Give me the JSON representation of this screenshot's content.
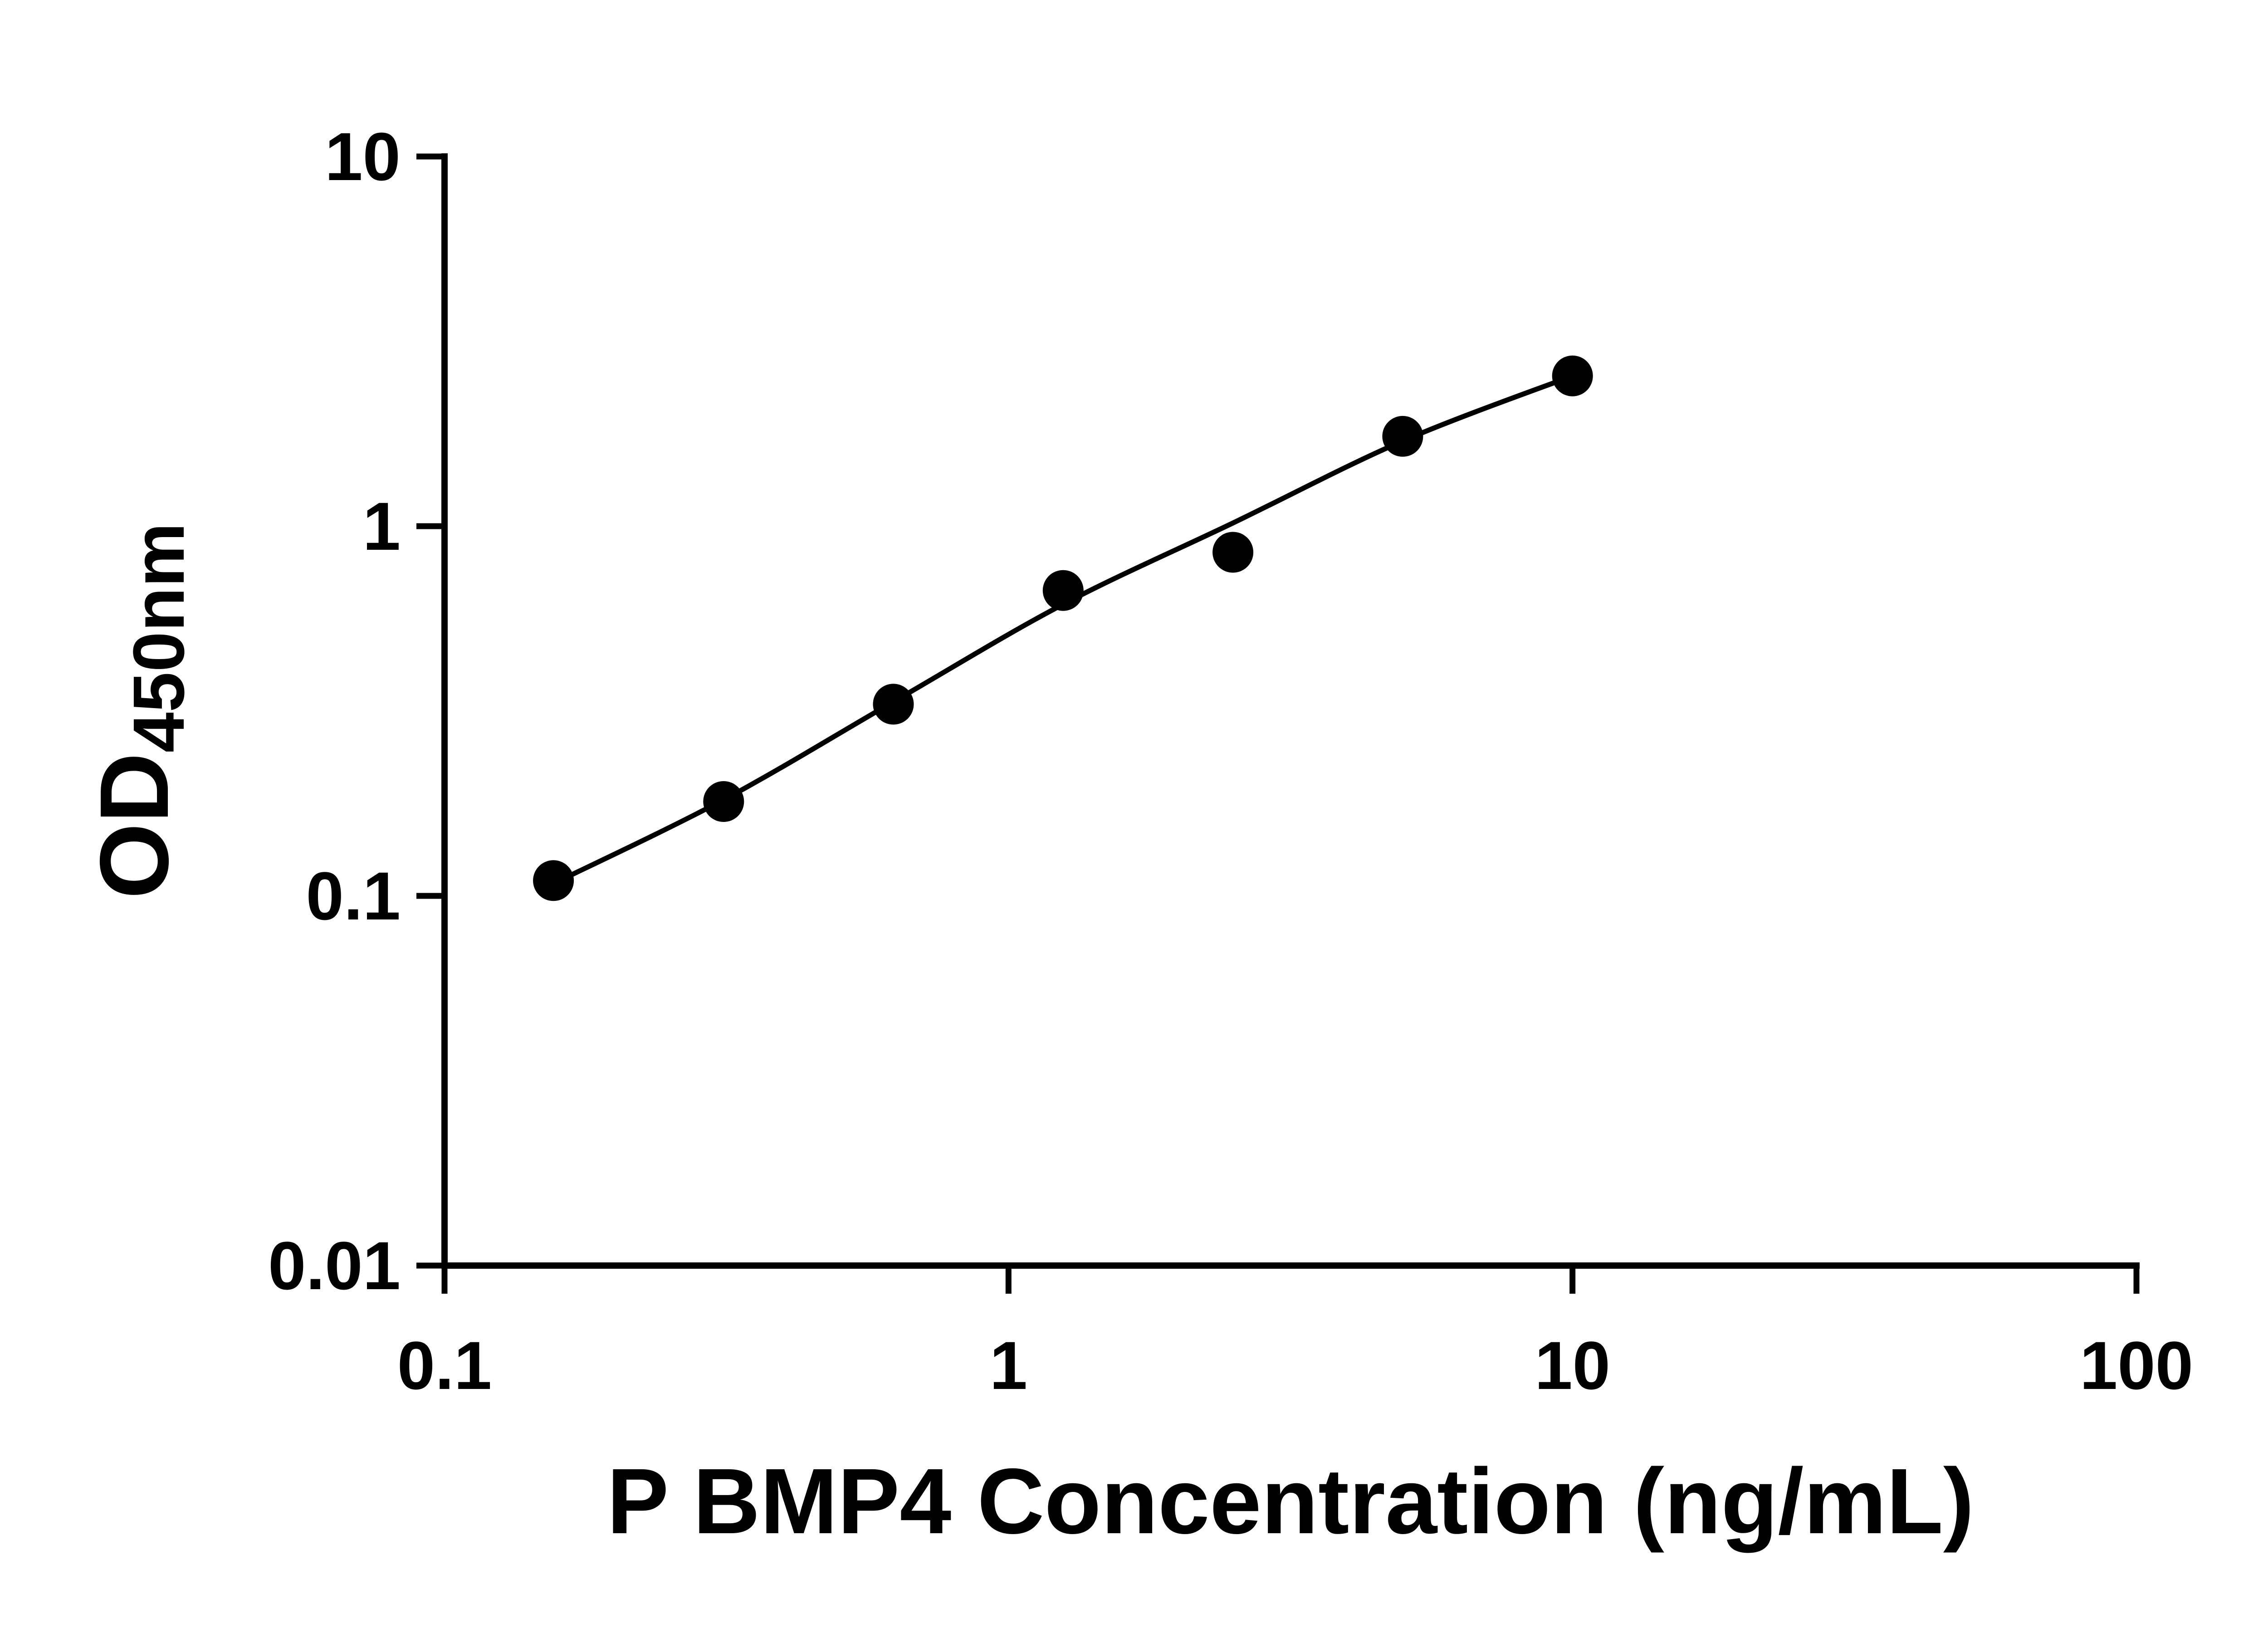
{
  "chart_data": {
    "type": "scatter",
    "title": "",
    "xlabel": "P BMP4 Concentration (ng/mL)",
    "ylabel": "OD",
    "ylabel_subscript": "450nm",
    "x_scale": "log",
    "y_scale": "log",
    "xlim": [
      0.1,
      100
    ],
    "ylim": [
      0.01,
      10
    ],
    "grid": false,
    "legend": "none",
    "x_ticks": [
      {
        "value": 0.1,
        "label": "0.1"
      },
      {
        "value": 1,
        "label": "1"
      },
      {
        "value": 10,
        "label": "10"
      },
      {
        "value": 100,
        "label": "100"
      }
    ],
    "y_ticks": [
      {
        "value": 10,
        "label": "10"
      },
      {
        "value": 1,
        "label": "1"
      },
      {
        "value": 0.1,
        "label": "0.1"
      },
      {
        "value": 0.01,
        "label": "0.01"
      }
    ],
    "points": [
      {
        "x": 0.156,
        "y": 0.11
      },
      {
        "x": 0.3125,
        "y": 0.18
      },
      {
        "x": 0.625,
        "y": 0.33
      },
      {
        "x": 1.25,
        "y": 0.67
      },
      {
        "x": 2.5,
        "y": 0.85
      },
      {
        "x": 5,
        "y": 1.75
      },
      {
        "x": 10,
        "y": 2.55
      }
    ],
    "fit_curve": [
      {
        "x": 0.156,
        "y": 0.108
      },
      {
        "x": 0.3125,
        "y": 0.182
      },
      {
        "x": 0.625,
        "y": 0.335
      },
      {
        "x": 1.25,
        "y": 0.615
      },
      {
        "x": 2.5,
        "y": 1.02
      },
      {
        "x": 5,
        "y": 1.7
      },
      {
        "x": 10,
        "y": 2.55
      }
    ],
    "colors": {
      "axis": "#000000",
      "points": "#000000",
      "curve": "#000000",
      "background": "#ffffff"
    }
  }
}
